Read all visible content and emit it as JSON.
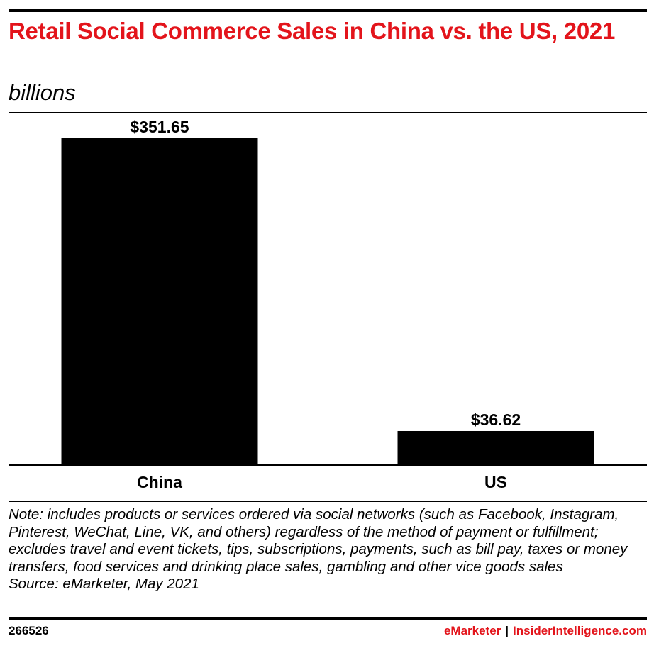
{
  "header": {
    "title": "Retail Social Commerce Sales in China vs. the US, 2021",
    "subtitle": "billions"
  },
  "chart_data": {
    "type": "bar",
    "title": "Retail Social Commerce Sales in China vs. the US, 2021",
    "subtitle": "billions",
    "categories": [
      "China",
      "US"
    ],
    "values": [
      351.65,
      36.62
    ],
    "value_labels": [
      "$351.65",
      "$36.62"
    ],
    "ylim": [
      0,
      400
    ],
    "grid": false,
    "bar_color": "#000000"
  },
  "footer": {
    "note": "Note: includes products or services ordered via social networks (such as Facebook, Instagram, Pinterest, WeChat, Line, VK, and others) regardless of the method of payment or fulfillment; excludes travel and event tickets, tips, subscriptions, payments, such as bill pay, taxes or money transfers, food services and drinking place sales, gambling and other vice goods sales",
    "source": "Source: eMarketer, May 2021",
    "chart_id": "266526",
    "brand_emarketer": "eMarketer",
    "brand_separator": "|",
    "brand_insider": "InsiderIntelligence.com"
  },
  "colors": {
    "accent": "#e3141b",
    "bars": "#000000"
  }
}
